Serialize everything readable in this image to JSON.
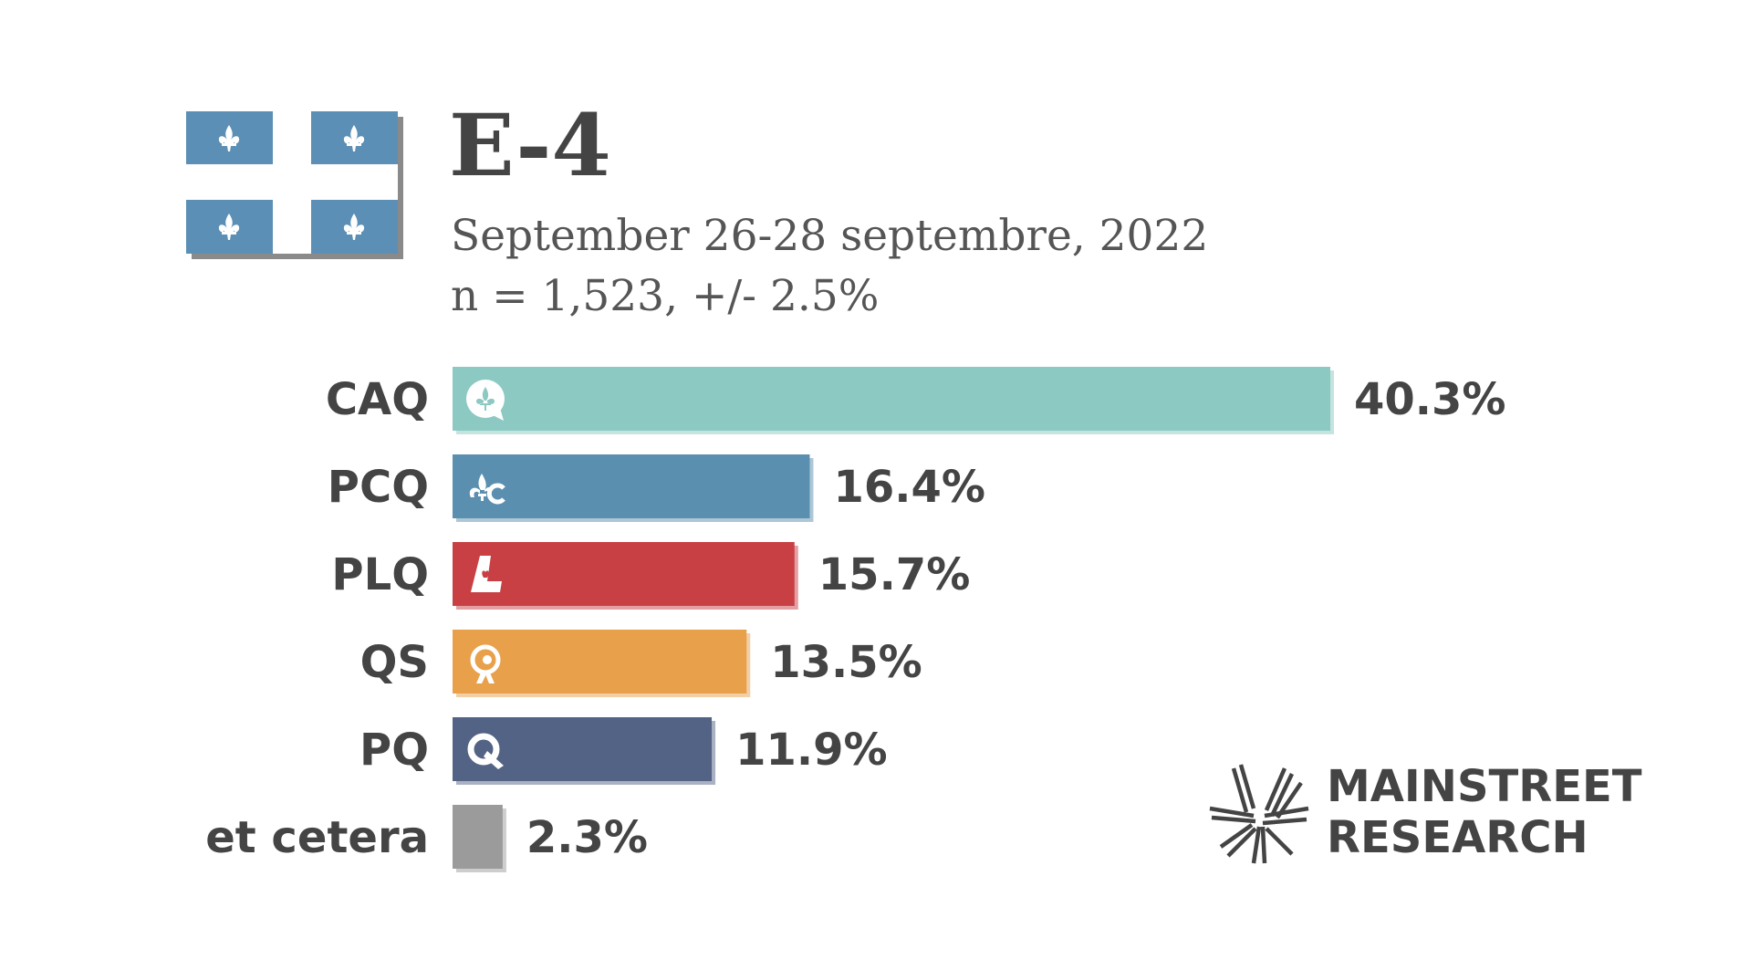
{
  "header": {
    "title": "E-4",
    "subtitle_line1": "September 26-28 septembre, 2022",
    "subtitle_line2": "n = 1,523, +/- 2.5%"
  },
  "brand": {
    "line1": "MAINSTREET",
    "line2": "RESEARCH",
    "icon": "mainstreet-starburst-icon",
    "flag": "quebec-flag-icon"
  },
  "colors": {
    "flag_blue": "#5b8fb5",
    "text": "#444444",
    "CAQ": "#8bc9c2",
    "PCQ": "#5b8fb0",
    "PLQ": "#c84044",
    "QS": "#e8a04b",
    "PQ": "#536385",
    "et cetera": "#9b9b9b"
  },
  "chart_data": {
    "type": "bar",
    "orientation": "horizontal",
    "categories": [
      "CAQ",
      "PCQ",
      "PLQ",
      "QS",
      "PQ",
      "et cetera"
    ],
    "values": [
      40.3,
      16.4,
      15.7,
      13.5,
      11.9,
      2.3
    ],
    "value_labels": [
      "40.3%",
      "16.4%",
      "15.7%",
      "13.5%",
      "11.9%",
      "2.3%"
    ],
    "bar_colors": [
      "#8bc9c2",
      "#5b8fb0",
      "#c84044",
      "#e8a04b",
      "#536385",
      "#9b9b9b"
    ],
    "icons": [
      "caq-logo-icon",
      "pcq-logo-icon",
      "plq-logo-icon",
      "qs-logo-icon",
      "pq-logo-icon",
      ""
    ],
    "xlim": [
      0,
      40.3
    ],
    "grid": false,
    "legend": "none"
  }
}
